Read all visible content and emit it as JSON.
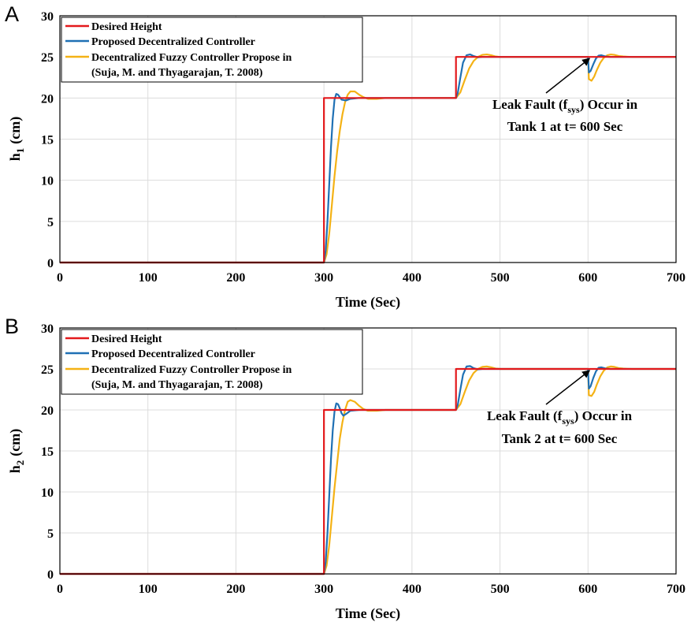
{
  "colors": {
    "desired": "#e3191c",
    "proposed": "#1f70b4",
    "fuzzy": "#f4b215"
  },
  "chart_data": [
    {
      "panel_label": "A",
      "type": "line",
      "xlabel": "Time (Sec)",
      "ylabel_main": "h",
      "ylabel_sub": "1",
      "ylabel_unit": "(cm)",
      "xlim": [
        0,
        700
      ],
      "ylim": [
        0,
        30
      ],
      "xticks": [
        0,
        100,
        200,
        300,
        400,
        500,
        600,
        700
      ],
      "yticks": [
        0,
        5,
        10,
        15,
        20,
        25,
        30
      ],
      "grid": true,
      "legend_position": "top-left",
      "legend": [
        "Desired Height",
        "Proposed Decentralized Controller",
        "Decentralized Fuzzy Controller Propose in",
        "(Suja, M. and Thyagarajan, T. 2008)"
      ],
      "annotation": {
        "line1_before": "Leak Fault (f",
        "line1_sub": "sys",
        "line1_after": ") Occur in",
        "line2": "Tank 1 at t= 600 Sec",
        "arrow_target": [
          600,
          25
        ]
      },
      "series": [
        {
          "name": "Desired Height",
          "color_key": "desired",
          "x": [
            0,
            300,
            300,
            450,
            450,
            700
          ],
          "y": [
            0,
            0,
            20,
            20,
            25,
            25
          ]
        },
        {
          "name": "Proposed Decentralized Controller",
          "color_key": "proposed",
          "x": [
            0,
            300,
            302,
            304,
            306,
            308,
            310,
            312,
            314,
            316,
            318,
            320,
            325,
            330,
            340,
            450,
            452,
            455,
            458,
            462,
            466,
            470,
            475,
            480,
            600,
            601,
            603,
            606,
            609,
            612,
            615,
            620,
            625,
            700
          ],
          "y": [
            0,
            0,
            1.5,
            5,
            9.5,
            14,
            17.5,
            19.8,
            20.5,
            20.4,
            20.1,
            19.8,
            19.7,
            19.9,
            20,
            20,
            20.6,
            22.5,
            24.3,
            25.2,
            25.3,
            25.1,
            24.95,
            25,
            25,
            23.1,
            23.3,
            24.1,
            24.8,
            25.15,
            25.2,
            25.05,
            25,
            25
          ]
        },
        {
          "name": "Decentralized Fuzzy Controller Propose in (Suja, M. and Thyagarajan, T. 2008)",
          "color_key": "fuzzy",
          "x": [
            0,
            300,
            303,
            306,
            309,
            312,
            315,
            318,
            321,
            324,
            327,
            330,
            335,
            340,
            345,
            350,
            360,
            370,
            450,
            455,
            460,
            465,
            470,
            475,
            480,
            485,
            490,
            495,
            500,
            600,
            601,
            604,
            607,
            610,
            614,
            618,
            622,
            626,
            630,
            635,
            640,
            645,
            650,
            700
          ],
          "y": [
            0,
            0,
            1,
            3.5,
            7,
            10.5,
            13.5,
            16,
            18,
            19.5,
            20.4,
            20.8,
            20.8,
            20.4,
            20.1,
            19.9,
            19.9,
            20,
            20,
            20.7,
            22.2,
            23.6,
            24.5,
            25,
            25.25,
            25.3,
            25.2,
            25.05,
            25,
            25,
            22.3,
            22.1,
            22.6,
            23.4,
            24.3,
            24.9,
            25.2,
            25.3,
            25.25,
            25.1,
            25.05,
            25.02,
            25,
            25
          ]
        }
      ]
    },
    {
      "panel_label": "B",
      "type": "line",
      "xlabel": "Time (Sec)",
      "ylabel_main": "h",
      "ylabel_sub": "2",
      "ylabel_unit": "(cm)",
      "xlim": [
        0,
        700
      ],
      "ylim": [
        0,
        30
      ],
      "xticks": [
        0,
        100,
        200,
        300,
        400,
        500,
        600,
        700
      ],
      "yticks": [
        0,
        5,
        10,
        15,
        20,
        25,
        30
      ],
      "grid": true,
      "legend_position": "top-left",
      "legend": [
        "Desired Height",
        "Proposed Decentralized Controller",
        "Decentralized Fuzzy Controller Propose in",
        "(Suja, M. and Thyagarajan, T. 2008)"
      ],
      "annotation": {
        "line1_before": "Leak Fault (f",
        "line1_sub": "sys",
        "line1_after": ") Occur in",
        "line2": "Tank 2 at t= 600 Sec",
        "arrow_target": [
          600,
          25
        ]
      },
      "series": [
        {
          "name": "Desired Height",
          "color_key": "desired",
          "x": [
            0,
            300,
            300,
            450,
            450,
            700
          ],
          "y": [
            0,
            0,
            20,
            20,
            25,
            25
          ]
        },
        {
          "name": "Proposed Decentralized Controller",
          "color_key": "proposed",
          "x": [
            0,
            300,
            302,
            304,
            306,
            308,
            310,
            312,
            314,
            316,
            318,
            320,
            322,
            325,
            330,
            340,
            450,
            452,
            455,
            458,
            462,
            466,
            470,
            475,
            480,
            600,
            601,
            603,
            606,
            609,
            612,
            615,
            620,
            625,
            700
          ],
          "y": [
            0,
            0,
            1.5,
            5,
            9.5,
            14,
            17.5,
            19.8,
            20.8,
            20.7,
            20.2,
            19.6,
            19.3,
            19.5,
            19.9,
            20,
            20,
            20.6,
            22.5,
            24.3,
            25.3,
            25.35,
            25.1,
            24.95,
            25,
            25,
            22.6,
            22.9,
            23.9,
            24.7,
            25.15,
            25.2,
            25.05,
            25,
            25
          ]
        },
        {
          "name": "Decentralized Fuzzy Controller Propose in (Suja, M. and Thyagarajan, T. 2008)",
          "color_key": "fuzzy",
          "x": [
            0,
            300,
            303,
            306,
            309,
            312,
            315,
            318,
            321,
            324,
            327,
            330,
            335,
            340,
            345,
            350,
            360,
            370,
            450,
            455,
            460,
            465,
            470,
            475,
            480,
            485,
            490,
            495,
            500,
            600,
            601,
            604,
            607,
            610,
            614,
            618,
            622,
            626,
            630,
            635,
            640,
            645,
            650,
            700
          ],
          "y": [
            0,
            0,
            1,
            3.5,
            7,
            10.5,
            13.5,
            16.5,
            18.5,
            20,
            21,
            21.2,
            21,
            20.5,
            20.1,
            19.9,
            19.9,
            20,
            20,
            20.7,
            22.2,
            23.6,
            24.5,
            25,
            25.25,
            25.3,
            25.2,
            25.05,
            25,
            25,
            21.8,
            21.7,
            22.2,
            23.1,
            24.1,
            24.8,
            25.2,
            25.3,
            25.25,
            25.1,
            25.05,
            25.02,
            25,
            25
          ]
        }
      ]
    }
  ]
}
